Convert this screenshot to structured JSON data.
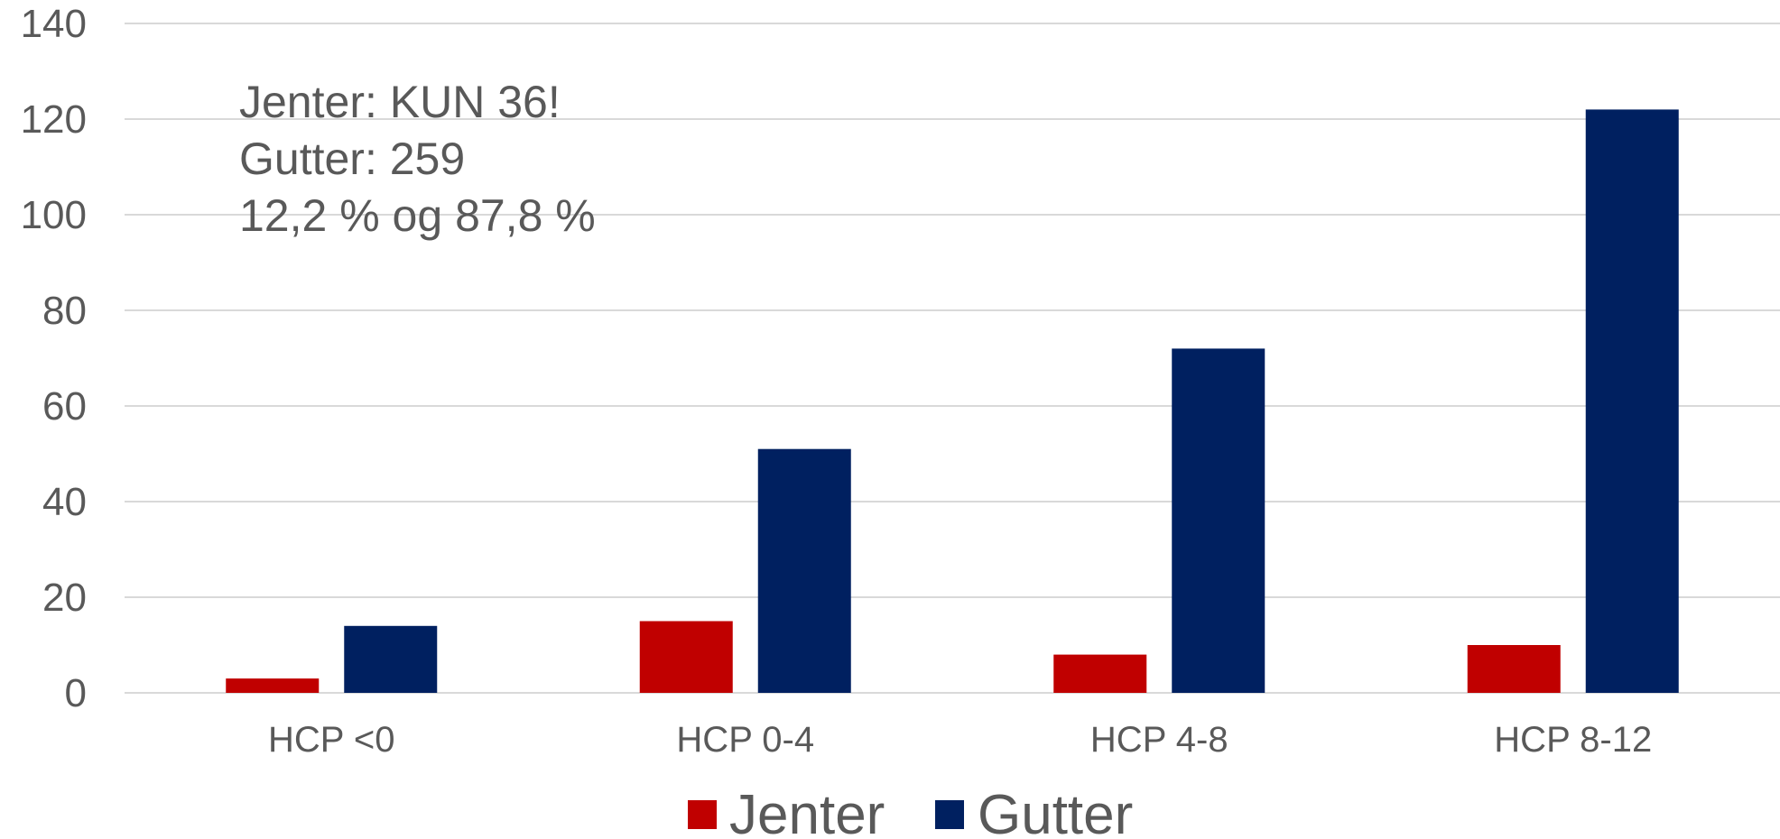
{
  "chart_data": {
    "type": "bar",
    "categories": [
      "HCP <0",
      "HCP 0-4",
      "HCP 4-8",
      "HCP 8-12"
    ],
    "series": [
      {
        "name": "Jenter",
        "values": [
          3,
          15,
          8,
          10
        ],
        "color": "#c00000"
      },
      {
        "name": "Gutter",
        "values": [
          14,
          51,
          72,
          122
        ],
        "color": "#002060"
      }
    ],
    "ylim": [
      0,
      140
    ],
    "yticks": [
      "0",
      "20",
      "40",
      "60",
      "80",
      "100",
      "120",
      "140"
    ],
    "grid": true,
    "legend_position": "bottom",
    "annotations": [
      "Jenter: KUN 36!",
      "Gutter: 259",
      "12,2 % og 87,8 %"
    ]
  }
}
